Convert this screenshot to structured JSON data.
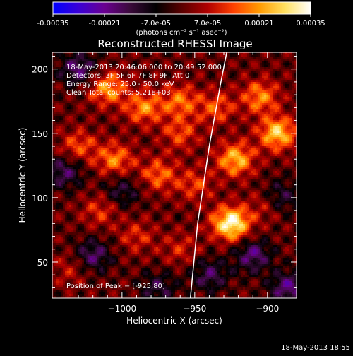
{
  "colors": {
    "background": "#000000",
    "text": "#ffffff",
    "colorbar_stops": [
      "#0000ff",
      "#3a00d6",
      "#6a0090",
      "#3a0a3a",
      "#000000",
      "#5a0000",
      "#b00000",
      "#ff4000",
      "#ff9a00",
      "#ffe060",
      "#ffffff"
    ],
    "limb_line": "#ffffff"
  },
  "colorbar": {
    "ticks": [
      "-0.00035",
      "-0.00021",
      "-7.0e-05",
      "7.0e-05",
      "0.00021",
      "0.00035"
    ],
    "tick_values": [
      -0.00035,
      -0.00021,
      -7e-05,
      7e-05,
      0.00021,
      0.00035
    ],
    "range": [
      -0.00035,
      0.00035
    ],
    "unit": "(photons cm⁻² s⁻¹ asec⁻²)"
  },
  "chart_data": {
    "type": "heatmap",
    "title": "Reconstructed RHESSI Image",
    "xlabel": "Heliocentric X (arcsec)",
    "ylabel": "Heliocentric Y (arcsec)",
    "xlim": [
      -1048,
      -880
    ],
    "ylim": [
      22,
      213
    ],
    "x_ticks": [
      -1000,
      -950,
      -900
    ],
    "y_ticks": [
      50,
      100,
      150,
      200
    ],
    "annotations": [
      "18-May-2013 20:46:06.000 to 20:49:52.000",
      "Detectors: 3F 5F 6F 7F 8F 9F, Att 0",
      "Energy Range: 25.0 - 50.0 keV",
      "Clean     Total counts: 5.21E+03"
    ],
    "peak_label": "Position of Peak = [-925,80]",
    "peak": [
      -925,
      80
    ],
    "hotspots": [
      {
        "x": -925,
        "y": 80,
        "v": 0.00034
      },
      {
        "x": -922,
        "y": 130,
        "v": 0.00024
      },
      {
        "x": -893,
        "y": 150,
        "v": 0.00026
      },
      {
        "x": -905,
        "y": 178,
        "v": 0.00019
      },
      {
        "x": -1010,
        "y": 185,
        "v": 0.00021
      },
      {
        "x": -985,
        "y": 170,
        "v": 0.00019
      },
      {
        "x": -960,
        "y": 175,
        "v": 0.00017
      },
      {
        "x": -1005,
        "y": 130,
        "v": 0.00018
      },
      {
        "x": -975,
        "y": 118,
        "v": 0.00016
      },
      {
        "x": -1030,
        "y": 140,
        "v": 0.00014
      },
      {
        "x": -960,
        "y": 150,
        "v": 0.00013
      },
      {
        "x": -935,
        "y": 170,
        "v": 0.00014
      },
      {
        "x": -950,
        "y": 110,
        "v": 0.00012
      },
      {
        "x": -1015,
        "y": 90,
        "v": 0.00011
      },
      {
        "x": -990,
        "y": 70,
        "v": 0.0001
      },
      {
        "x": -900,
        "y": 95,
        "v": 0.00011
      },
      {
        "x": -960,
        "y": 60,
        "v": 9e-05
      },
      {
        "x": -1035,
        "y": 45,
        "v": 8e-05
      },
      {
        "x": -1030,
        "y": 200,
        "v": -0.00018
      },
      {
        "x": -1040,
        "y": 120,
        "v": -0.00016
      },
      {
        "x": -1020,
        "y": 55,
        "v": -0.00017
      },
      {
        "x": -1000,
        "y": 105,
        "v": -0.00012
      },
      {
        "x": -940,
        "y": 40,
        "v": -0.00015
      },
      {
        "x": -910,
        "y": 55,
        "v": -0.00018
      },
      {
        "x": -892,
        "y": 100,
        "v": -0.00016
      },
      {
        "x": -886,
        "y": 30,
        "v": -0.00019
      },
      {
        "x": -975,
        "y": 30,
        "v": -0.00012
      }
    ],
    "limb_curve": [
      [
        -953,
        22
      ],
      [
        -948,
        80
      ],
      [
        -940,
        140
      ],
      [
        -932,
        190
      ],
      [
        -928,
        213
      ]
    ]
  },
  "footer": {
    "timestamp": "18-May-2013 18:55"
  }
}
